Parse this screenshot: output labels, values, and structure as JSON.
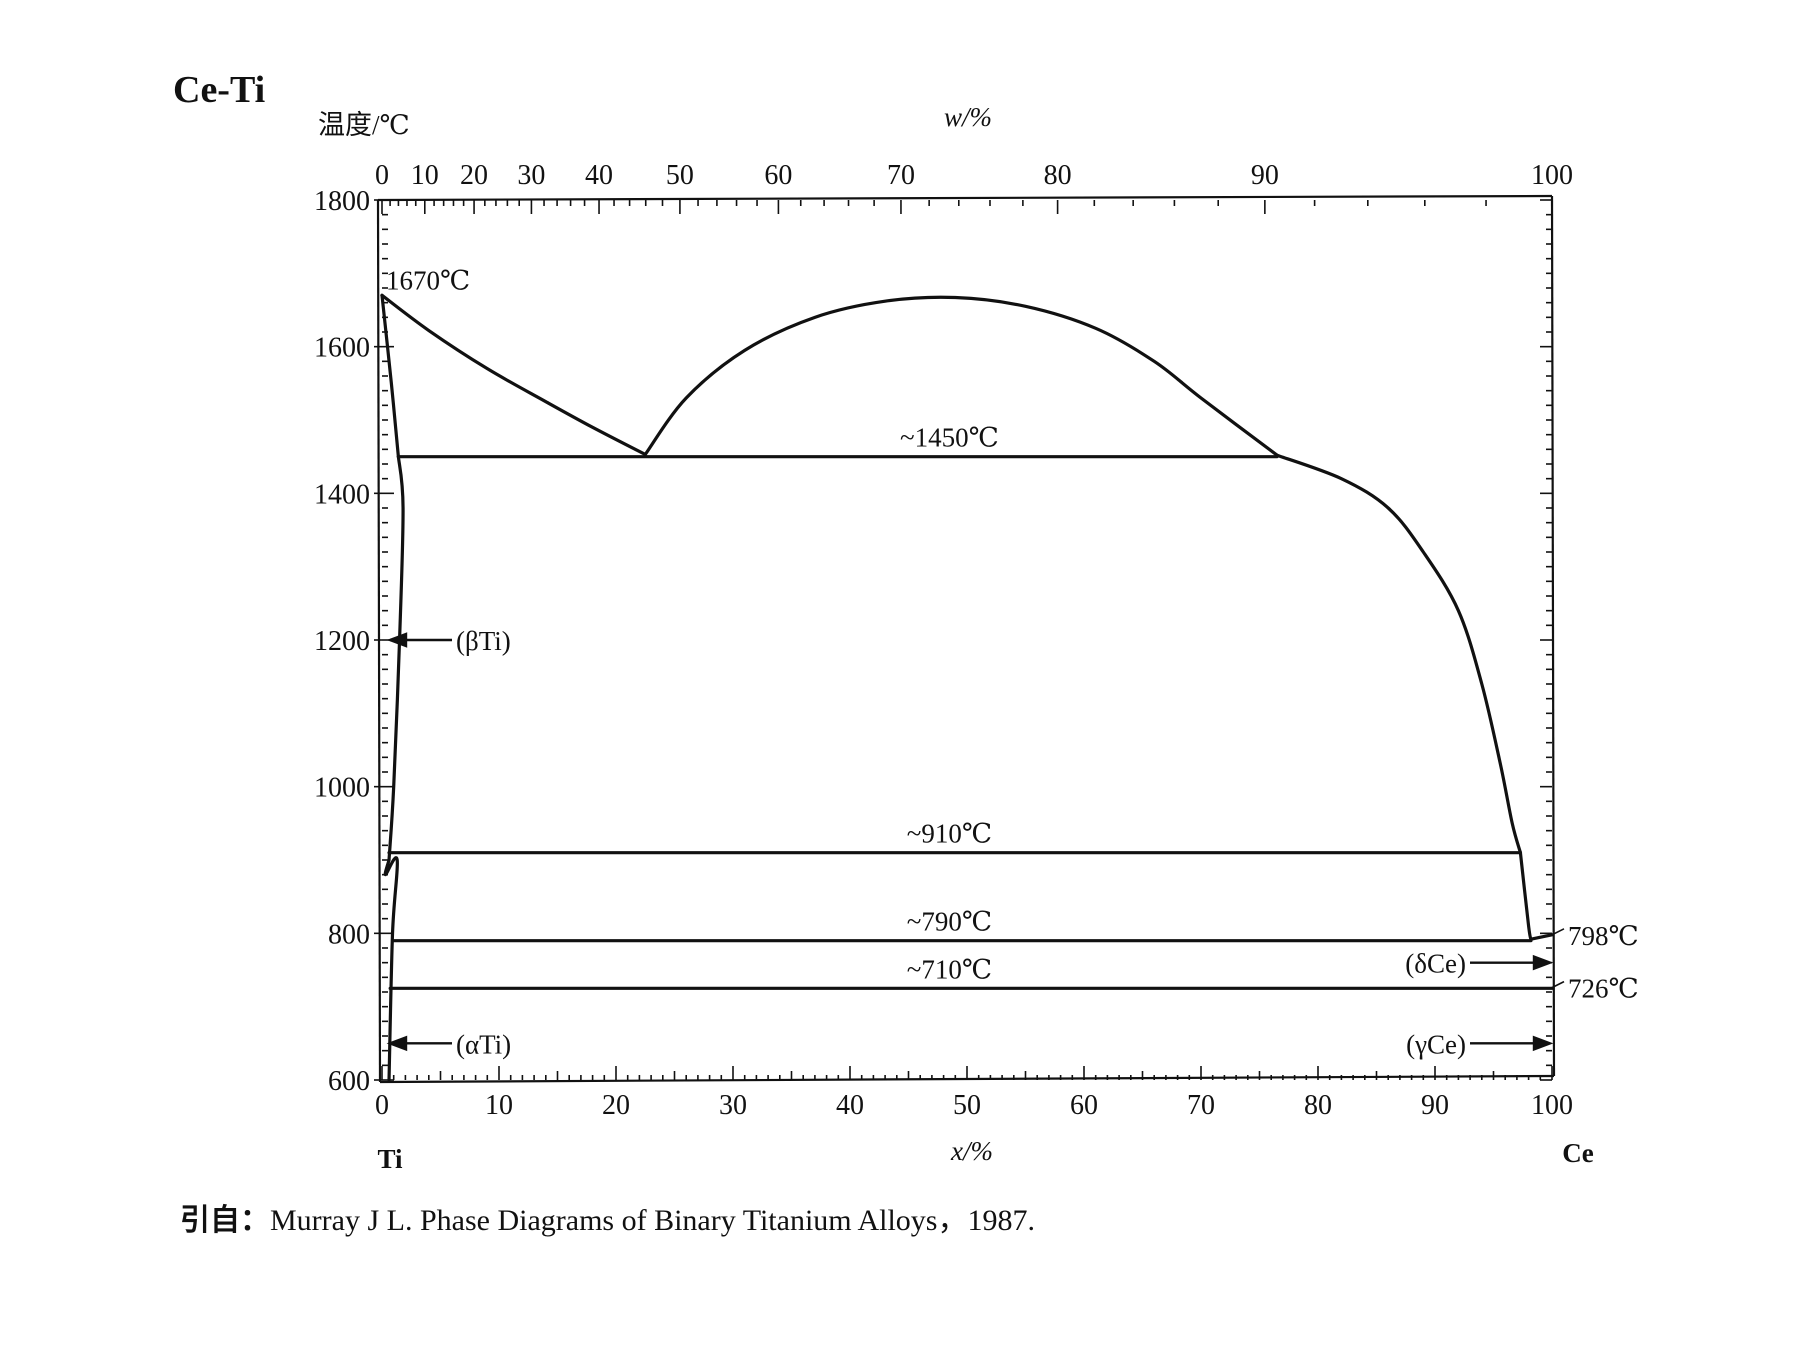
{
  "title": "Ce-Ti",
  "y_axis_title": "温度/℃",
  "top_axis_title": "w/%",
  "bottom_axis_title": "x/%",
  "left_element": "Ti",
  "right_element": "Ce",
  "citation_prefix": "引自",
  "citation_text": "Murray J L. Phase Diagrams of Binary Titanium Alloys，1987.",
  "chart_data": {
    "type": "phase-diagram",
    "ylim": [
      600,
      1800
    ],
    "xlim": [
      0,
      100
    ],
    "y_ticks": [
      1800,
      1600,
      1400,
      1200,
      1000,
      800,
      600
    ],
    "x_ticks": [
      0,
      10,
      20,
      30,
      40,
      50,
      60,
      70,
      80,
      90,
      100
    ],
    "top_ticks": [
      0,
      10,
      20,
      30,
      40,
      50,
      60,
      70,
      80,
      90,
      100
    ],
    "curves": [
      {
        "name": "liquidus-ti-side",
        "points": [
          [
            0,
            1670
          ],
          [
            4,
            1622
          ],
          [
            9,
            1570
          ],
          [
            14,
            1525
          ],
          [
            18,
            1490
          ],
          [
            22.5,
            1453
          ]
        ]
      },
      {
        "name": "miscibility-gap",
        "points": [
          [
            22.5,
            1453
          ],
          [
            26,
            1530
          ],
          [
            31,
            1595
          ],
          [
            37,
            1640
          ],
          [
            43,
            1662
          ],
          [
            49,
            1667
          ],
          [
            55,
            1655
          ],
          [
            61,
            1625
          ],
          [
            66,
            1580
          ],
          [
            70,
            1530
          ],
          [
            76.5,
            1452
          ]
        ]
      },
      {
        "name": "liquidus-ce-side",
        "points": [
          [
            76.5,
            1452
          ],
          [
            82,
            1420
          ],
          [
            86,
            1380
          ],
          [
            89,
            1320
          ],
          [
            92,
            1240
          ],
          [
            94,
            1140
          ],
          [
            95.6,
            1030
          ],
          [
            96.6,
            950
          ],
          [
            97.3,
            910
          ]
        ]
      },
      {
        "name": "ce-bcc-solvus",
        "points": [
          [
            97.3,
            910
          ],
          [
            98,
            810
          ],
          [
            98.2,
            792
          ]
        ]
      },
      {
        "name": "ti-solidus",
        "points": [
          [
            0,
            1670
          ],
          [
            0.8,
            1550
          ],
          [
            1.4,
            1450
          ]
        ]
      },
      {
        "name": "ti-beta-solvus",
        "points": [
          [
            1.4,
            1450
          ],
          [
            1.8,
            1380
          ],
          [
            1.5,
            1200
          ],
          [
            1.0,
            1000
          ],
          [
            0.6,
            900
          ]
        ]
      },
      {
        "name": "ti-alpha-boundary",
        "points": [
          [
            0.6,
            900
          ],
          [
            0.3,
            880
          ],
          [
            1.3,
            900
          ],
          [
            0.9,
            800
          ],
          [
            0.6,
            600
          ]
        ]
      },
      {
        "name": "ce-end",
        "points": [
          [
            98.2,
            792
          ],
          [
            100,
            798
          ]
        ]
      }
    ],
    "isotherms": [
      {
        "label": "~1450℃",
        "y": 1450,
        "x_start": 1.4,
        "x_end": 76.5
      },
      {
        "label": "~910℃",
        "y": 910,
        "x_start": 0.6,
        "x_end": 97.3
      },
      {
        "label": "~790℃",
        "y": 790,
        "x_start": 0.9,
        "x_end": 98.2
      },
      {
        "label": "~710℃",
        "y": 725,
        "x_start": 0.7,
        "x_end": 100
      }
    ],
    "annotations": [
      {
        "label": "1670℃",
        "x": 0,
        "y": 1670
      },
      {
        "label": "798℃",
        "x": 100,
        "y": 798
      },
      {
        "label": "726℃",
        "x": 100,
        "y": 726
      }
    ],
    "phase_labels": [
      {
        "label": "(βTi)",
        "x": 0,
        "y": 1200,
        "arrow_to": "left"
      },
      {
        "label": "(αTi)",
        "x": 0,
        "y": 650,
        "arrow_to": "left"
      },
      {
        "label": "(δCe)",
        "x": 100,
        "y": 760,
        "arrow_to": "right"
      },
      {
        "label": "(γCe)",
        "x": 100,
        "y": 650,
        "arrow_to": "right"
      }
    ]
  }
}
